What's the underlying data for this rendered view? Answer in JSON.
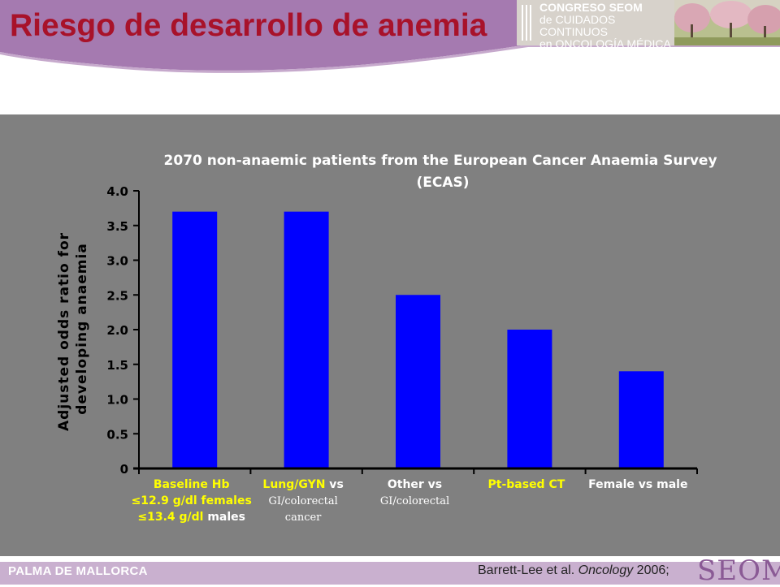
{
  "slide": {
    "title": "Riesgo de desarrollo de anemia",
    "footer_location": "PALMA DE MALLORCA",
    "citation": {
      "authors": "Barrett-Lee et al.",
      "journal": "Oncology",
      "year": "2006;"
    },
    "seom_logo": "SEOM"
  },
  "congress_logo": {
    "lines": [
      "CONGRESO SEOM",
      "de CUIDADOS CONTINUOS",
      "en ONCOLOGÍA MÉDICA"
    ]
  },
  "colors": {
    "title": "#a8122a",
    "header_band": "#a57ab0",
    "panel": "#808080",
    "bar": "#0000ff",
    "highlight": "#ffff00",
    "footer": "#c9b0cf"
  },
  "chart_data": {
    "type": "bar",
    "title": "2070 non-anaemic patients from the European Cancer Anaemia Survey (ECAS)",
    "title_lines": [
      "2070 non-anaemic patients from the European Cancer Anaemia Survey",
      "(ECAS)"
    ],
    "ylabel_lines": [
      "Adjusted odds ratio for",
      "developing anaemia"
    ],
    "ylim": [
      0,
      4.0
    ],
    "yticks": [
      "0",
      "0.5",
      "1.0",
      "1.5",
      "2.0",
      "2.5",
      "3.0",
      "3.5",
      "4.0"
    ],
    "categories": [
      "Baseline Hb",
      "Lung/GYN vs GI/colorectal cancer",
      "Other vs GI/colorectal",
      "Pt-based CT",
      "Female vs male"
    ],
    "values": [
      3.7,
      3.7,
      2.5,
      2.0,
      1.4
    ],
    "category_labels": [
      [
        [
          {
            "t": "Baseline Hb",
            "c": "hl",
            "b": true
          }
        ],
        [
          {
            "t": "≤12.9 g/dl females",
            "c": "hl",
            "b": true
          }
        ],
        [
          {
            "t": "≤13.4 g/dl",
            "c": "hl",
            "b": true
          },
          {
            "t": " males",
            "c": "w",
            "b": true
          }
        ]
      ],
      [
        [
          {
            "t": "Lung/GYN",
            "c": "hl",
            "b": true
          },
          {
            "t": " vs",
            "c": "w",
            "b": true
          }
        ],
        [
          {
            "t": "GI/colorectal",
            "c": "w",
            "b": false
          }
        ],
        [
          {
            "t": "cancer",
            "c": "w",
            "b": false
          }
        ]
      ],
      [
        [
          {
            "t": "Other vs",
            "c": "w",
            "b": true
          }
        ],
        [
          {
            "t": "GI/colorectal",
            "c": "w",
            "b": false
          }
        ]
      ],
      [
        [
          {
            "t": "Pt-based CT",
            "c": "hl",
            "b": true
          }
        ]
      ],
      [
        [
          {
            "t": "Female vs male",
            "c": "w",
            "b": true
          }
        ]
      ]
    ]
  }
}
